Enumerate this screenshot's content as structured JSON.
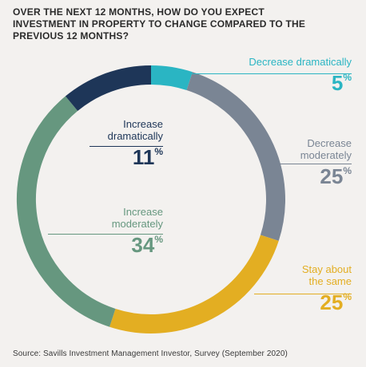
{
  "title_lines": [
    "OVER THE NEXT 12 MONTHS, HOW DO YOU EXPECT",
    "INVESTMENT IN PROPERTY TO CHANGE COMPARED TO THE",
    "PREVIOUS 12 MONTHS?"
  ],
  "source": "Source: Savills Investment Management Investor, Survey (September 2020)",
  "chart_data": {
    "type": "pie",
    "donut": true,
    "title": "OVER THE NEXT 12 MONTHS, HOW DO YOU EXPECT INVESTMENT IN PROPERTY TO CHANGE COMPARED TO THE PREVIOUS 12 MONTHS?",
    "slices": [
      {
        "name_lines": [
          "Decrease dramatically"
        ],
        "value": 5,
        "label": "5",
        "color": "#2ab5c3"
      },
      {
        "name_lines": [
          "Decrease",
          "moderately"
        ],
        "value": 25,
        "label": "25",
        "color": "#7a8594"
      },
      {
        "name_lines": [
          "Stay about",
          "the same"
        ],
        "value": 25,
        "label": "25",
        "color": "#e3ae22"
      },
      {
        "name_lines": [
          "Increase",
          "moderately"
        ],
        "value": 34,
        "label": "34",
        "color": "#66977f"
      },
      {
        "name_lines": [
          "Increase",
          "dramatically"
        ],
        "value": 11,
        "label": "11",
        "color": "#1e3658"
      }
    ],
    "percent_symbol": "%"
  }
}
